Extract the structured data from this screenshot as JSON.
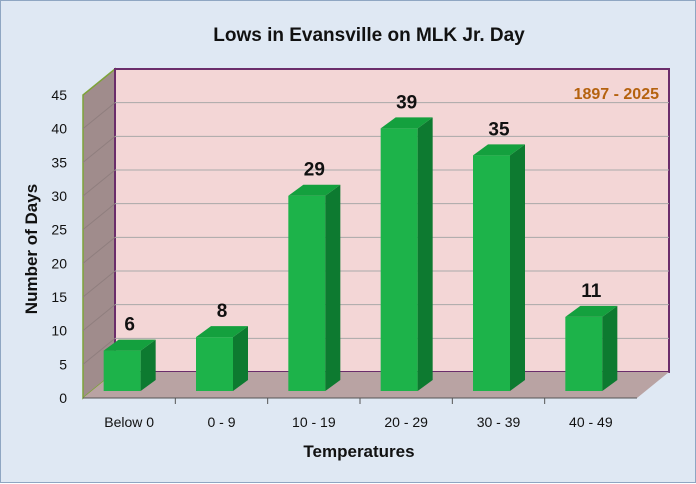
{
  "chart_data": {
    "type": "bar",
    "title": "Lows in Evansville on MLK Jr. Day",
    "annotation": "1897 - 2025",
    "xlabel": "Temperatures",
    "ylabel": "Number of Days",
    "categories": [
      "Below 0",
      "0 - 9",
      "10 - 19",
      "20 - 29",
      "30 - 39",
      "40 - 49"
    ],
    "values": [
      6,
      8,
      29,
      39,
      35,
      11
    ],
    "ylim": [
      0,
      45
    ],
    "yticks": [
      0,
      5,
      10,
      15,
      20,
      25,
      30,
      35,
      40,
      45
    ],
    "grid": true,
    "style": "3d-column",
    "colors": {
      "bar_front": "#1db34a",
      "bar_side": "#0d7a30",
      "bar_top": "#14a03e",
      "back_wall": "#f3d6d6",
      "side_wall": "#a08c8c",
      "floor": "#b9a3a3",
      "wall_border": "#6b2d6b",
      "annotation": "#b5620f",
      "background": "#dfe8f3"
    }
  }
}
